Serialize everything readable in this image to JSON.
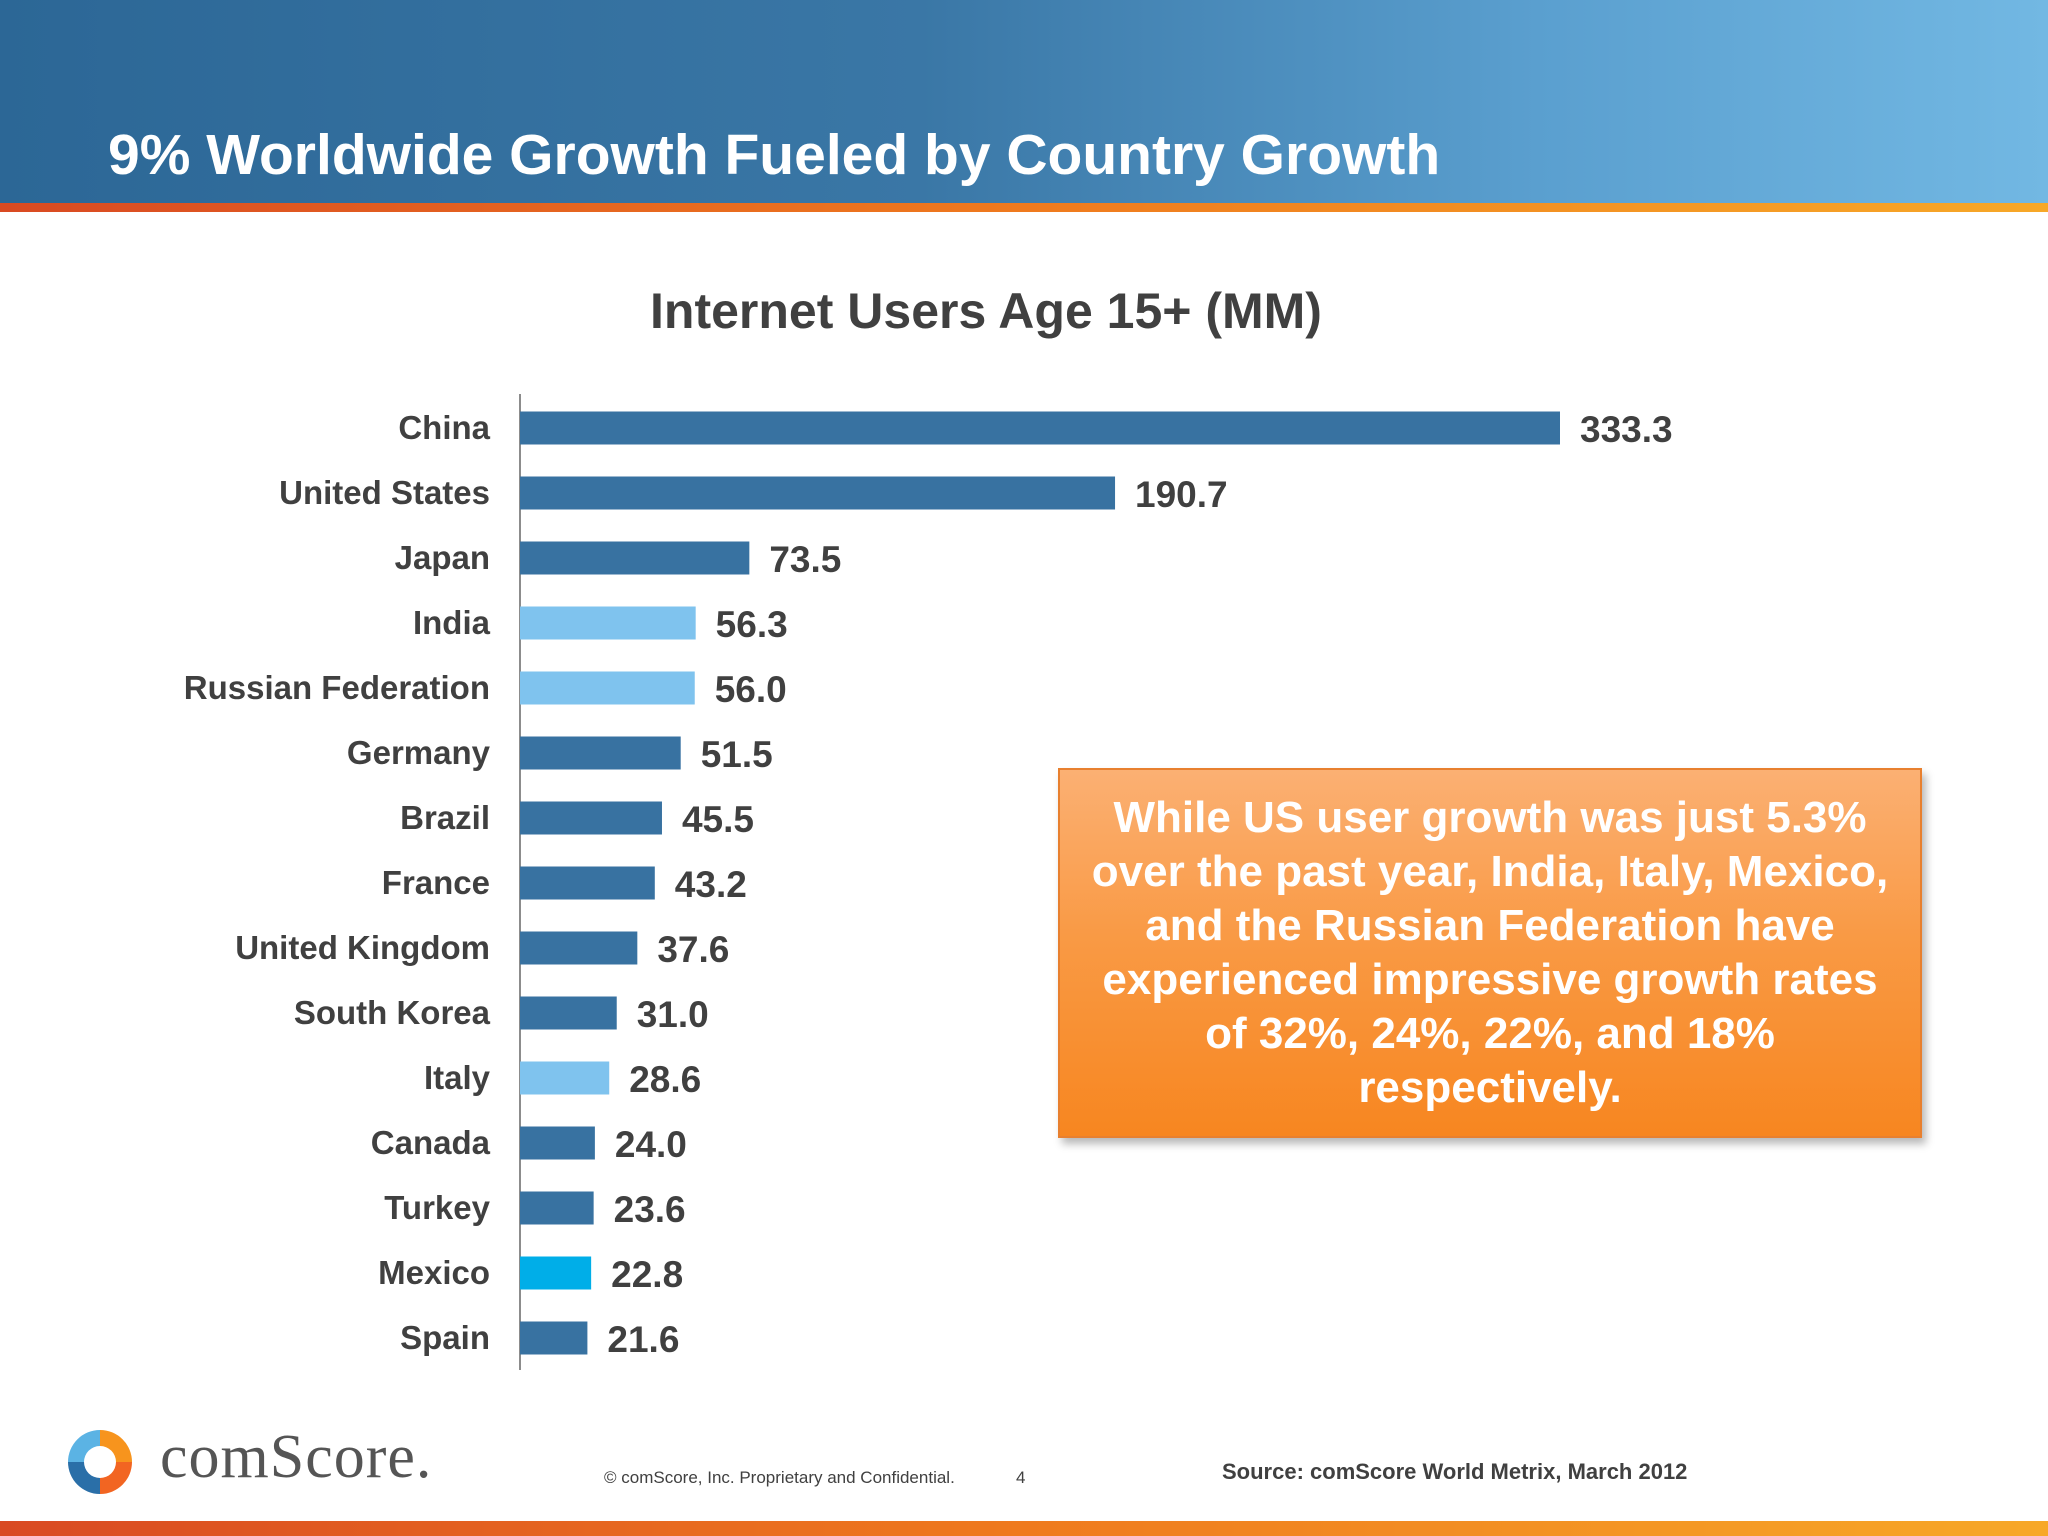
{
  "slide": {
    "title": "9% Worldwide Growth Fueled by Country Growth",
    "callout": "While US user growth was just 5.3% over the past year, India, Italy, Mexico, and the Russian Federation have experienced impressive growth rates of 32%, 24%, 22%, and 18% respectively.",
    "logo_text": "comScore.",
    "copyright": "© comScore, Inc.  Proprietary and Confidential.",
    "page_number": "4",
    "source": "Source:  comScore World Metrix, March 2012"
  },
  "colors": {
    "bar_default": "#3872a1",
    "bar_light": "#7fc3ee",
    "bar_bright": "#00aee8"
  },
  "chart_data": {
    "type": "bar",
    "orientation": "horizontal",
    "title": "Internet Users Age 15+ (MM)",
    "categories": [
      "China",
      "United States",
      "Japan",
      "India",
      "Russian Federation",
      "Germany",
      "Brazil",
      "France",
      "United Kingdom",
      "South Korea",
      "Italy",
      "Canada",
      "Turkey",
      "Mexico",
      "Spain"
    ],
    "values": [
      333.3,
      190.7,
      73.5,
      56.3,
      56.0,
      51.5,
      45.5,
      43.2,
      37.6,
      31.0,
      28.6,
      24.0,
      23.6,
      22.8,
      21.6
    ],
    "value_labels": [
      "333.3",
      "190.7",
      "73.5",
      "56.3",
      "56.0",
      "51.5",
      "45.5",
      "43.2",
      "37.6",
      "31.0",
      "28.6",
      "24.0",
      "23.6",
      "22.8",
      "21.6"
    ],
    "bar_colors": [
      "#3872a1",
      "#3872a1",
      "#3872a1",
      "#7fc3ee",
      "#7fc3ee",
      "#3872a1",
      "#3872a1",
      "#3872a1",
      "#3872a1",
      "#3872a1",
      "#7fc3ee",
      "#3872a1",
      "#3872a1",
      "#00aee8",
      "#3872a1"
    ],
    "xlim": [
      0,
      333.3
    ],
    "xlabel": "",
    "ylabel": "",
    "grid": false,
    "legend": "none"
  }
}
